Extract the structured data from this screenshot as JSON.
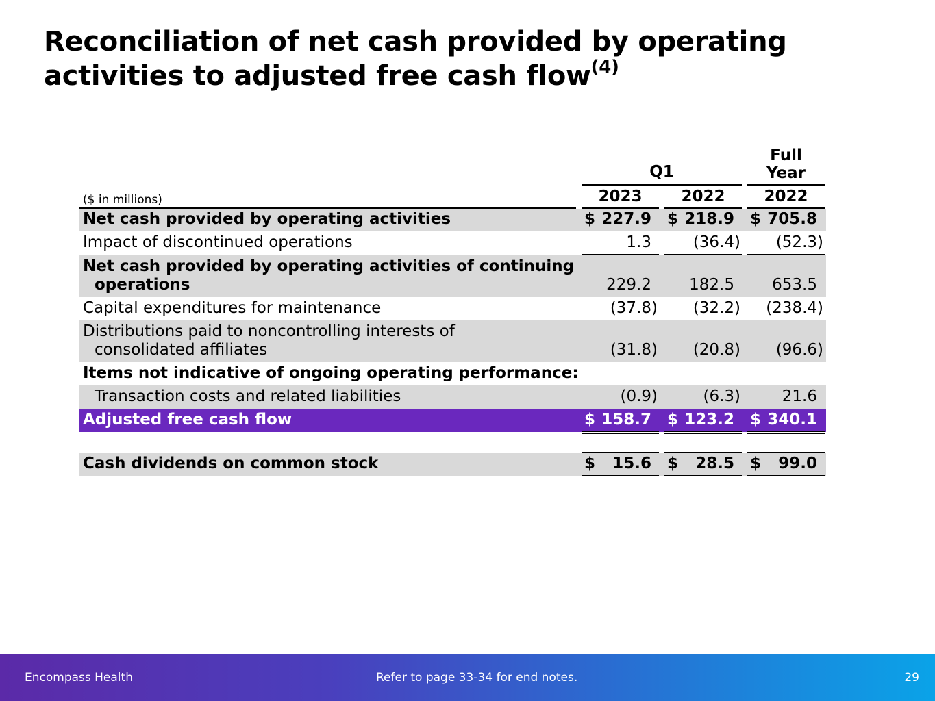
{
  "title": {
    "line1": "Reconciliation of net cash provided by operating",
    "line2": "activities to adjusted free cash flow",
    "superscript": "(4)"
  },
  "table": {
    "units": "($ in millions)",
    "group_q1": "Q1",
    "group_full_year_line1": "Full",
    "group_full_year_line2": "Year",
    "years": [
      "2023",
      "2022",
      "2022"
    ],
    "currency": "$",
    "rows": [
      {
        "label": "Net cash provided by operating activities",
        "values": [
          "227.9",
          "218.9",
          "705.8"
        ]
      },
      {
        "label": "Impact of discontinued operations",
        "values": [
          "1.3",
          "(36.4)",
          "(52.3)"
        ]
      },
      {
        "label_line1": "Net cash provided by operating activities of continuing",
        "label_line2": "operations",
        "values": [
          "229.2",
          "182.5",
          "653.5"
        ]
      },
      {
        "label": "Capital expenditures for maintenance",
        "values": [
          "(37.8)",
          "(32.2)",
          "(238.4)"
        ]
      },
      {
        "label_line1": "Distributions paid to noncontrolling interests of",
        "label_line2": "consolidated affiliates",
        "values": [
          "(31.8)",
          "(20.8)",
          "(96.6)"
        ]
      },
      {
        "label": "Items not indicative of ongoing operating performance:"
      },
      {
        "label": "Transaction costs and related liabilities",
        "values": [
          "(0.9)",
          "(6.3)",
          "21.6"
        ]
      },
      {
        "label": "Adjusted free cash flow",
        "values": [
          "158.7",
          "123.2",
          "340.1"
        ]
      },
      {
        "label": "Cash dividends on common stock",
        "values": [
          "15.6",
          "28.5",
          "99.0"
        ]
      }
    ]
  },
  "footer": {
    "brand": "Encompass Health",
    "note": "Refer to page 33-34 for end notes.",
    "page": "29"
  },
  "colors": {
    "highlight": "#6a28be",
    "shade": "#d9d9d9"
  }
}
